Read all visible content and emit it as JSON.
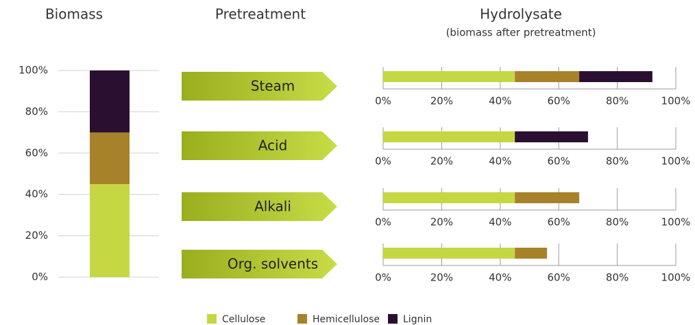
{
  "pretreatment_title": "Pretreatment",
  "hydrolysate": {
    "title": "Hydrolysate",
    "subtitle": "(biomass after pretreatment)"
  },
  "chart_data": [
    {
      "type": "stacked-bar",
      "title": "Biomass",
      "series": [
        {
          "name": "Cellulose",
          "color": "#c5d843",
          "values": [
            45
          ]
        },
        {
          "name": "Hemicellulose",
          "color": "#a8822a",
          "values": [
            25
          ]
        },
        {
          "name": "Lignin",
          "color": "#2b0f30",
          "values": [
            30
          ]
        }
      ],
      "ylim": [
        0,
        100
      ],
      "yticks": [
        {
          "value": 0,
          "label": "0%"
        },
        {
          "value": 20,
          "label": "20%"
        },
        {
          "value": 40,
          "label": "40%"
        },
        {
          "value": 60,
          "label": "60%"
        },
        {
          "value": 80,
          "label": "80%"
        },
        {
          "value": 100,
          "label": "100%"
        }
      ],
      "grid": true
    },
    {
      "type": "stacked-hbar",
      "categories": [
        "Steam"
      ],
      "series": [
        {
          "color": "#c5d843",
          "values": [
            45
          ]
        },
        {
          "color": "#a8822a",
          "values": [
            22
          ]
        },
        {
          "color": "#2b0f30",
          "values": [
            25
          ]
        }
      ],
      "xlim": [
        0,
        100
      ],
      "xticks": [
        {
          "value": 0,
          "label": "0%"
        },
        {
          "value": 20,
          "label": "20%"
        },
        {
          "value": 40,
          "label": "40%"
        },
        {
          "value": 60,
          "label": "60%"
        },
        {
          "value": 80,
          "label": "80%"
        },
        {
          "value": 100,
          "label": "100%"
        }
      ],
      "grid": true
    },
    {
      "type": "stacked-hbar",
      "categories": [
        "Acid"
      ],
      "series": [
        {
          "color": "#c5d843",
          "values": [
            45
          ]
        },
        {
          "color": "#a8822a",
          "values": [
            null
          ]
        },
        {
          "color": "#2b0f30",
          "values": [
            25
          ]
        }
      ],
      "xlim": [
        0,
        100
      ],
      "xticks": [
        {
          "value": 0,
          "label": "0%"
        },
        {
          "value": 20,
          "label": "20%"
        },
        {
          "value": 40,
          "label": "40%"
        },
        {
          "value": 60,
          "label": "60%"
        },
        {
          "value": 80,
          "label": "80%"
        },
        {
          "value": 100,
          "label": "100%"
        }
      ],
      "grid": true
    },
    {
      "type": "stacked-hbar",
      "categories": [
        "Alkali"
      ],
      "series": [
        {
          "color": "#c5d843",
          "values": [
            45
          ]
        },
        {
          "color": "#a8822a",
          "values": [
            22
          ]
        },
        {
          "color": "#2b0f30",
          "values": [
            null
          ]
        }
      ],
      "xlim": [
        0,
        100
      ],
      "xticks": [
        {
          "value": 0,
          "label": "0%"
        },
        {
          "value": 20,
          "label": "20%"
        },
        {
          "value": 40,
          "label": "40%"
        },
        {
          "value": 60,
          "label": "60%"
        },
        {
          "value": 80,
          "label": "80%"
        },
        {
          "value": 100,
          "label": "100%"
        }
      ],
      "grid": true
    },
    {
      "type": "stacked-hbar",
      "categories": [
        "Org. solvents"
      ],
      "series": [
        {
          "color": "#c5d843",
          "values": [
            45
          ]
        },
        {
          "color": "#a8822a",
          "values": [
            11
          ]
        },
        {
          "color": "#2b0f30",
          "values": [
            null
          ]
        }
      ],
      "xlim": [
        0,
        100
      ],
      "xticks": [
        {
          "value": 0,
          "label": "0%"
        },
        {
          "value": 20,
          "label": "20%"
        },
        {
          "value": 40,
          "label": "40%"
        },
        {
          "value": 60,
          "label": "60%"
        },
        {
          "value": 80,
          "label": "80%"
        },
        {
          "value": 100,
          "label": "100%"
        }
      ],
      "grid": true
    }
  ]
}
